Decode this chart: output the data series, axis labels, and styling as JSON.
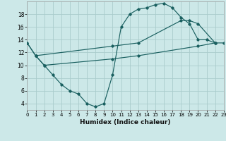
{
  "bg_color": "#cce8e8",
  "grid_color": "#aacccc",
  "line_color": "#1a6060",
  "xlabel": "Humidex (Indice chaleur)",
  "xlim": [
    0,
    23
  ],
  "ylim": [
    3,
    20
  ],
  "yticks": [
    4,
    6,
    8,
    10,
    12,
    14,
    16,
    18
  ],
  "xticks": [
    0,
    1,
    2,
    3,
    4,
    5,
    6,
    7,
    8,
    9,
    10,
    11,
    12,
    13,
    14,
    15,
    16,
    17,
    18,
    19,
    20,
    21,
    22,
    23
  ],
  "line1_x": [
    0,
    1,
    2,
    3,
    4,
    5,
    6,
    7,
    8,
    9,
    10,
    11,
    12,
    13,
    14,
    15,
    16,
    17,
    18,
    19,
    20,
    21,
    22,
    23
  ],
  "line1_y": [
    13.5,
    11.5,
    10.0,
    8.5,
    7.0,
    6.0,
    5.5,
    4.0,
    3.5,
    4.0,
    8.5,
    16.0,
    18.0,
    18.8,
    19.0,
    19.5,
    19.7,
    19.0,
    17.5,
    16.5,
    14.0,
    14.0,
    13.5,
    13.5
  ],
  "line2_x": [
    0,
    1,
    10,
    13,
    18,
    19,
    20,
    22
  ],
  "line2_y": [
    13.5,
    11.5,
    13.0,
    13.5,
    17.0,
    17.0,
    16.5,
    13.5
  ],
  "line3_x": [
    1,
    2,
    10,
    13,
    20,
    22
  ],
  "line3_y": [
    11.5,
    10.0,
    11.0,
    11.5,
    13.0,
    13.5
  ]
}
